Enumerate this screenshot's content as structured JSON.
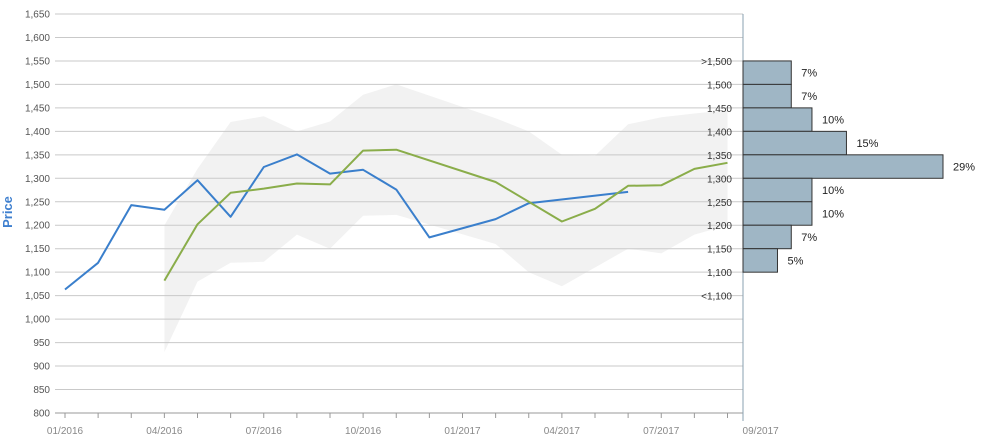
{
  "chart_data": {
    "type": "line",
    "ylabel": "Price",
    "ylim": [
      800,
      1650
    ],
    "y_ticks": [
      "800",
      "850",
      "900",
      "950",
      "1,000",
      "1,050",
      "1,100",
      "1,150",
      "1,200",
      "1,250",
      "1,300",
      "1,350",
      "1,400",
      "1,450",
      "1,500",
      "1,550",
      "1,600",
      "1,650"
    ],
    "x_ticks": [
      "01/2016",
      "04/2016",
      "07/2016",
      "10/2016",
      "01/2017",
      "04/2017",
      "07/2017",
      "09/2017"
    ],
    "grid": true,
    "series": [
      {
        "color": "#3a7fcc",
        "points": [
          [
            "2016-01",
            1063
          ],
          [
            "2016-02",
            1120
          ],
          [
            "2016-03",
            1243
          ],
          [
            "2016-04",
            1233
          ],
          [
            "2016-05",
            1296
          ],
          [
            "2016-06",
            1218
          ],
          [
            "2016-07",
            1324
          ],
          [
            "2016-08",
            1351
          ],
          [
            "2016-09",
            1310
          ],
          [
            "2016-10",
            1318
          ],
          [
            "2016-11",
            1276
          ],
          [
            "2016-12",
            1174
          ],
          [
            "2017-02",
            1213
          ],
          [
            "2017-03",
            1247
          ],
          [
            "2017-06",
            1271
          ]
        ]
      },
      {
        "color": "#8aad4a",
        "points": [
          [
            "2016-04",
            1082
          ],
          [
            "2016-05",
            1202
          ],
          [
            "2016-06",
            1269
          ],
          [
            "2016-07",
            1278
          ],
          [
            "2016-08",
            1289
          ],
          [
            "2016-09",
            1287
          ],
          [
            "2016-10",
            1359
          ],
          [
            "2016-11",
            1361
          ],
          [
            "2017-02",
            1292
          ],
          [
            "2017-04",
            1208
          ],
          [
            "2017-05",
            1235
          ],
          [
            "2017-06",
            1284
          ],
          [
            "2017-07",
            1285
          ],
          [
            "2017-08",
            1320
          ],
          [
            "2017-09",
            1333
          ]
        ]
      }
    ],
    "band": {
      "color": "#f2f2f2",
      "upper": [
        [
          "2016-04",
          1200
        ],
        [
          "2016-05",
          1320
        ],
        [
          "2016-06",
          1420
        ],
        [
          "2016-07",
          1432
        ],
        [
          "2016-08",
          1400
        ],
        [
          "2016-09",
          1421
        ],
        [
          "2016-10",
          1478
        ],
        [
          "2016-11",
          1500
        ],
        [
          "2017-02",
          1428
        ],
        [
          "2017-03",
          1400
        ],
        [
          "2017-04",
          1350
        ],
        [
          "2017-05",
          1348
        ],
        [
          "2017-06",
          1415
        ],
        [
          "2017-07",
          1430
        ],
        [
          "2017-08",
          1438
        ],
        [
          "2017-09",
          1445
        ]
      ],
      "lower": [
        [
          "2016-04",
          930
        ],
        [
          "2016-05",
          1080
        ],
        [
          "2016-06",
          1120
        ],
        [
          "2016-07",
          1122
        ],
        [
          "2016-08",
          1180
        ],
        [
          "2016-09",
          1150
        ],
        [
          "2016-10",
          1220
        ],
        [
          "2016-11",
          1222
        ],
        [
          "2017-02",
          1160
        ],
        [
          "2017-03",
          1100
        ],
        [
          "2017-04",
          1070
        ],
        [
          "2017-05",
          1110
        ],
        [
          "2017-06",
          1150
        ],
        [
          "2017-07",
          1140
        ],
        [
          "2017-08",
          1180
        ],
        [
          "2017-09",
          1200
        ]
      ]
    },
    "distribution": {
      "bars": [
        {
          "label": ">1,500",
          "low": 1500,
          "high": 1550,
          "percent": 7,
          "pct_label": "7%"
        },
        {
          "label": "1,500",
          "low": 1450,
          "high": 1500,
          "percent": 7,
          "pct_label": "7%"
        },
        {
          "label": "1,450",
          "low": 1400,
          "high": 1450,
          "percent": 10,
          "pct_label": "10%"
        },
        {
          "label": "1,400",
          "low": 1350,
          "high": 1400,
          "percent": 15,
          "pct_label": "15%"
        },
        {
          "label": "1,350",
          "low": 1300,
          "high": 1350,
          "percent": 29,
          "pct_label": "29%"
        },
        {
          "label": "1,300",
          "low": 1250,
          "high": 1300,
          "percent": 10,
          "pct_label": "10%"
        },
        {
          "label": "1,250",
          "low": 1200,
          "high": 1250,
          "percent": 10,
          "pct_label": "10%"
        },
        {
          "label": "1,200",
          "low": 1150,
          "high": 1200,
          "percent": 7,
          "pct_label": "7%"
        },
        {
          "label": "1,150",
          "low": 1100,
          "high": 1150,
          "percent": 5,
          "pct_label": "5%"
        },
        {
          "label": "1,100",
          "low": 1050,
          "high": 1100,
          "percent": 0,
          "pct_label": ""
        },
        {
          "label": "<1,100",
          "low": 1050,
          "high": 1100,
          "percent": 0,
          "pct_label": ""
        }
      ],
      "bar_color": "#9fb6c5",
      "bar_border": "#333333"
    }
  }
}
